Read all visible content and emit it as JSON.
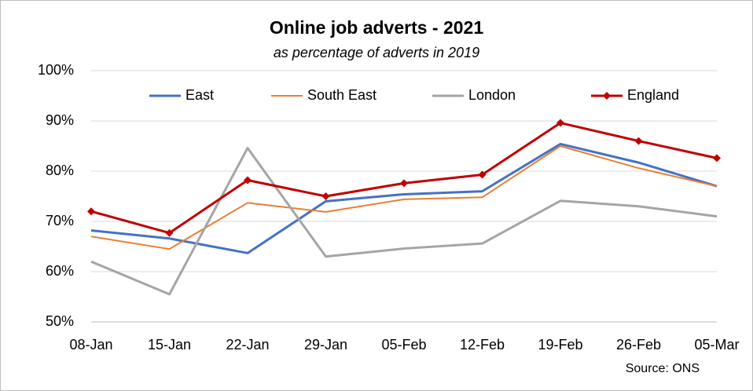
{
  "chart_data": {
    "type": "line",
    "title": "Online job adverts - 2021",
    "subtitle": "as percentage of adverts in 2019",
    "source": "Source: ONS",
    "categories": [
      "08-Jan",
      "15-Jan",
      "22-Jan",
      "29-Jan",
      "05-Feb",
      "12-Feb",
      "19-Feb",
      "26-Feb",
      "05-Mar"
    ],
    "series": [
      {
        "name": "East",
        "color": "#4472c4",
        "line_width": 3,
        "values": [
          68.2,
          66.6,
          63.7,
          74,
          75.4,
          76,
          85.4,
          81.7,
          77
        ]
      },
      {
        "name": "South East",
        "color": "#ed7d31",
        "line_width": 2,
        "values": [
          67,
          64.5,
          73.7,
          71.9,
          74.4,
          74.8,
          85,
          80.6,
          77
        ]
      },
      {
        "name": "London",
        "color": "#a5a5a5",
        "line_width": 3,
        "values": [
          62,
          55.5,
          84.6,
          63,
          64.6,
          65.6,
          74.1,
          73,
          71
        ]
      },
      {
        "name": "England",
        "color": "#c00000",
        "line_width": 3,
        "marker": "diamond",
        "values": [
          72,
          67.7,
          78.2,
          75,
          77.6,
          79.3,
          89.6,
          86,
          82.6
        ]
      }
    ],
    "ylim": [
      50,
      100
    ],
    "yticks": [
      {
        "value": 50,
        "label": "50%"
      },
      {
        "value": 60,
        "label": "60%"
      },
      {
        "value": 70,
        "label": "70%"
      },
      {
        "value": 80,
        "label": "80%"
      },
      {
        "value": 90,
        "label": "90%"
      },
      {
        "value": 100,
        "label": "100%"
      }
    ],
    "grid": true,
    "legend": "top"
  }
}
